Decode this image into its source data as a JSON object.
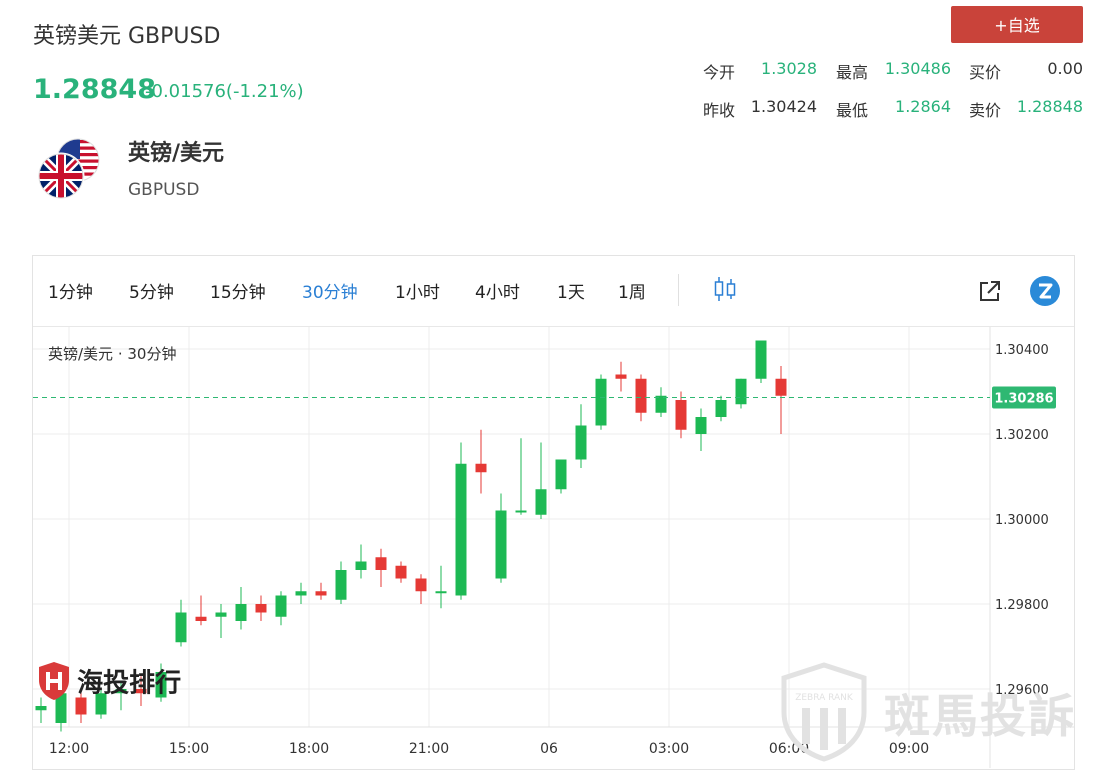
{
  "header": {
    "title": "英镑美元 GBPUSD",
    "price": "1.28848",
    "change": "-0.01576(-1.21%)",
    "watch_button": "+自选"
  },
  "quotes": {
    "open_label": "今开",
    "open_value": "1.3028",
    "high_label": "最高",
    "high_value": "1.30486",
    "bid_label": "买价",
    "bid_value": "0.00",
    "prev_close_label": "昨收",
    "prev_close_value": "1.30424",
    "low_label": "最低",
    "low_value": "1.2864",
    "ask_label": "卖价",
    "ask_value": "1.28848"
  },
  "instrument": {
    "name_cn": "英镑/美元",
    "symbol": "GBPUSD",
    "flag_icon": "gbp-usd-flag-icon"
  },
  "toolbar": {
    "intervals": [
      "1分钟",
      "5分钟",
      "15分钟",
      "30分钟",
      "1小时",
      "4小时",
      "1天",
      "1周"
    ],
    "active_interval": "30分钟",
    "candle_type_icon": "candlestick-icon",
    "popout_icon": "external-link-icon",
    "zebra_icon": "zebra-logo-icon"
  },
  "chart": {
    "legend": "英镑/美元 · 30分钟",
    "current_price_label": "1.30286",
    "watermark_left": "海投排行",
    "watermark_right": "斑馬投訴",
    "watermark_right_badge": "ZEBRA RANK"
  },
  "chart_data": {
    "type": "candlestick",
    "interval": "30分钟",
    "ylim": [
      1.2946,
      1.3046
    ],
    "y_ticks": [
      1.296,
      1.298,
      1.3,
      1.302,
      1.304
    ],
    "y_tick_labels": [
      "1.29600",
      "1.29800",
      "1.30000",
      "1.30200",
      "1.30400"
    ],
    "x_tick_labels": [
      "12:00",
      "15:00",
      "18:00",
      "21:00",
      "06",
      "03:00",
      "06:00",
      "09:00"
    ],
    "current_price": 1.30286,
    "colors": {
      "up": "#1db954",
      "down": "#e53935",
      "price_line": "#2eb872"
    },
    "candles": [
      {
        "o": 1.2955,
        "h": 1.2958,
        "l": 1.2952,
        "c": 1.2956
      },
      {
        "o": 1.2952,
        "h": 1.2962,
        "l": 1.295,
        "c": 1.2959
      },
      {
        "o": 1.2958,
        "h": 1.296,
        "l": 1.2952,
        "c": 1.2954
      },
      {
        "o": 1.2954,
        "h": 1.296,
        "l": 1.2953,
        "c": 1.2959
      },
      {
        "o": 1.2959,
        "h": 1.2962,
        "l": 1.2955,
        "c": 1.296
      },
      {
        "o": 1.296,
        "h": 1.2963,
        "l": 1.2956,
        "c": 1.2959
      },
      {
        "o": 1.2958,
        "h": 1.2966,
        "l": 1.2957,
        "c": 1.2964
      },
      {
        "o": 1.2971,
        "h": 1.2981,
        "l": 1.297,
        "c": 1.2978
      },
      {
        "o": 1.2977,
        "h": 1.2982,
        "l": 1.2975,
        "c": 1.2976
      },
      {
        "o": 1.2977,
        "h": 1.298,
        "l": 1.2972,
        "c": 1.2978
      },
      {
        "o": 1.2976,
        "h": 1.2984,
        "l": 1.2974,
        "c": 1.298
      },
      {
        "o": 1.298,
        "h": 1.2982,
        "l": 1.2976,
        "c": 1.2978
      },
      {
        "o": 1.2977,
        "h": 1.2983,
        "l": 1.2975,
        "c": 1.2982
      },
      {
        "o": 1.2982,
        "h": 1.2985,
        "l": 1.298,
        "c": 1.2983
      },
      {
        "o": 1.2983,
        "h": 1.2985,
        "l": 1.2981,
        "c": 1.2982
      },
      {
        "o": 1.2981,
        "h": 1.299,
        "l": 1.298,
        "c": 1.2988
      },
      {
        "o": 1.2988,
        "h": 1.2994,
        "l": 1.2986,
        "c": 1.299
      },
      {
        "o": 1.2991,
        "h": 1.2993,
        "l": 1.2984,
        "c": 1.2988
      },
      {
        "o": 1.2989,
        "h": 1.299,
        "l": 1.2985,
        "c": 1.2986
      },
      {
        "o": 1.2986,
        "h": 1.2987,
        "l": 1.298,
        "c": 1.2983
      },
      {
        "o": 1.2983,
        "h": 1.2989,
        "l": 1.2979,
        "c": 1.2983
      },
      {
        "o": 1.2982,
        "h": 1.3018,
        "l": 1.2981,
        "c": 1.3013
      },
      {
        "o": 1.3013,
        "h": 1.3021,
        "l": 1.3006,
        "c": 1.3011
      },
      {
        "o": 1.2986,
        "h": 1.3006,
        "l": 1.2985,
        "c": 1.3002
      },
      {
        "o": 1.3002,
        "h": 1.3019,
        "l": 1.3001,
        "c": 1.3002
      },
      {
        "o": 1.3001,
        "h": 1.3018,
        "l": 1.3,
        "c": 1.3007
      },
      {
        "o": 1.3007,
        "h": 1.3014,
        "l": 1.3006,
        "c": 1.3014
      },
      {
        "o": 1.3014,
        "h": 1.3027,
        "l": 1.3012,
        "c": 1.3022
      },
      {
        "o": 1.3022,
        "h": 1.3034,
        "l": 1.3021,
        "c": 1.3033
      },
      {
        "o": 1.3034,
        "h": 1.3037,
        "l": 1.303,
        "c": 1.3033
      },
      {
        "o": 1.3033,
        "h": 1.3034,
        "l": 1.3023,
        "c": 1.3025
      },
      {
        "o": 1.3025,
        "h": 1.3031,
        "l": 1.3024,
        "c": 1.3029
      },
      {
        "o": 1.3028,
        "h": 1.303,
        "l": 1.3019,
        "c": 1.3021
      },
      {
        "o": 1.302,
        "h": 1.3026,
        "l": 1.3016,
        "c": 1.3024
      },
      {
        "o": 1.3024,
        "h": 1.3029,
        "l": 1.3023,
        "c": 1.3028
      },
      {
        "o": 1.3027,
        "h": 1.3033,
        "l": 1.3026,
        "c": 1.3033
      },
      {
        "o": 1.3033,
        "h": 1.3042,
        "l": 1.3032,
        "c": 1.3042
      },
      {
        "o": 1.3033,
        "h": 1.3036,
        "l": 1.302,
        "c": 1.3029
      }
    ]
  }
}
